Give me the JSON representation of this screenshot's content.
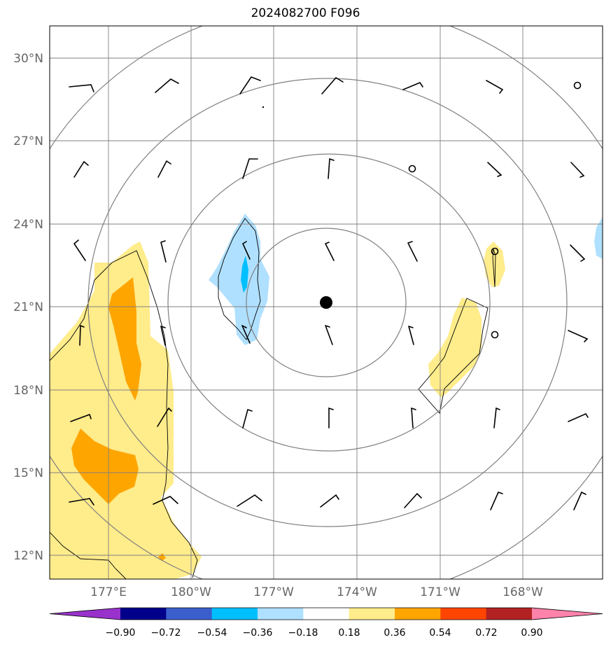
{
  "title": "2024082700 F096",
  "latitude_labels": [
    "30°N",
    "27°N",
    "24°N",
    "21°N",
    "18°N",
    "15°N",
    "12°N"
  ],
  "longitude_labels": [
    "177°E",
    "180°W",
    "177°W",
    "174°W",
    "171°W",
    "168°W"
  ],
  "colorbar": {
    "ticks": [
      "−0.90",
      "−0.72",
      "−0.54",
      "−0.36",
      "−0.18",
      "0.18",
      "0.36",
      "0.54",
      "0.72",
      "0.90"
    ],
    "colors": [
      "#9932cc",
      "#00008b",
      "#3a5fcd",
      "#00bfff",
      "#b0e0ff",
      "#ffffff",
      "#ffec8b",
      "#ffa500",
      "#ff4500",
      "#b22222",
      "#ff82ab"
    ]
  },
  "colors": {
    "positive_light": "#ffec8b",
    "positive_medium": "#ffa500",
    "negative_light": "#b0e0ff",
    "negative_medium": "#00bfff",
    "grid": "#808080",
    "range_rings": "#808080"
  },
  "storm_center": {
    "lat": 21.2,
    "lon": -174.5
  }
}
